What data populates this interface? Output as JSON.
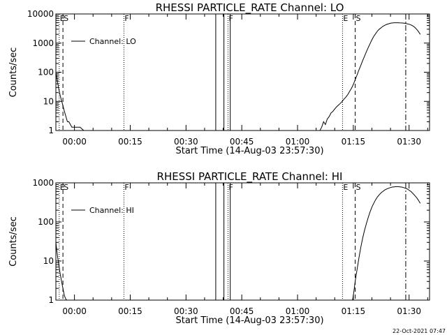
{
  "footer": {
    "date_stamp": "22-Oct-2021 07:47"
  },
  "chart_data": [
    {
      "type": "line",
      "title": "RHESSI PARTICLE_RATE Channel: LO",
      "xlabel": "Start Time (14-Aug-03 23:57:30)",
      "ylabel": "Counts/sec",
      "yscale": "log",
      "ylim": [
        1,
        10000
      ],
      "ytick_labels": [
        "1",
        "10",
        "100",
        "1000",
        "10000"
      ],
      "ytick_values": [
        1,
        10,
        100,
        1000,
        10000
      ],
      "xlim": [
        -2.5,
        98
      ],
      "xtick_labels": [
        "00:00",
        "00:15",
        "00:30",
        "00:45",
        "01:00",
        "01:15",
        "01:30"
      ],
      "xtick_values": [
        2.5,
        17.5,
        32.5,
        47.5,
        62.5,
        77.5,
        92.5
      ],
      "legend": {
        "label": "Channel: LO",
        "position": "top-left"
      },
      "series": [
        {
          "x": [
            -2.5,
            -2.2,
            -1.8,
            -1.3,
            -0.8,
            -0.3,
            0.2,
            0.6,
            1.0,
            1.4,
            1.8,
            2.3,
            3.0,
            4.0,
            5.0,
            68.5,
            69.0,
            69.5,
            70.0,
            70.5,
            71.0,
            71.5,
            72.0,
            72.5,
            73.0,
            73.5,
            74.0,
            74.5,
            75.0,
            75.5,
            76.0,
            76.5,
            77.0,
            77.5,
            78.0,
            78.5,
            79.0,
            79.5,
            80.0,
            80.5,
            81.0,
            81.5,
            82.0,
            82.5,
            83.0,
            83.5,
            84.0,
            84.5,
            85.0,
            85.5,
            86.0,
            86.5,
            87.0,
            87.5,
            88.0,
            88.5,
            89.0,
            89.5,
            90.0,
            90.5,
            91.0,
            91.5,
            92.0,
            92.5,
            93.0,
            93.5,
            94.0,
            94.5,
            95.0,
            95.5
          ],
          "y": [
            100,
            60,
            30,
            15,
            9,
            5,
            3,
            2,
            2,
            1.6,
            1.3,
            1.3,
            1.3,
            1.3,
            1,
            1,
            1.3,
            2,
            1.6,
            2.5,
            3,
            4,
            4.5,
            5.5,
            6.5,
            7.5,
            8.5,
            10,
            12,
            14,
            17,
            22,
            28,
            38,
            55,
            80,
            120,
            170,
            250,
            350,
            500,
            700,
            950,
            1300,
            1700,
            2100,
            2600,
            3000,
            3400,
            3800,
            4100,
            4400,
            4600,
            4800,
            4900,
            5000,
            5000,
            5000,
            4950,
            4900,
            4850,
            4750,
            4600,
            4450,
            4200,
            3900,
            3500,
            3000,
            2500,
            2000
          ]
        }
      ],
      "event_lines": [
        {
          "x": -1.6,
          "style": "dotted",
          "label": "E"
        },
        {
          "x": -0.6,
          "style": "dashed",
          "label": "S"
        },
        {
          "x": 15.8,
          "style": "dotted",
          "label": "F"
        },
        {
          "x": 40.5,
          "style": "solid",
          "label": ""
        },
        {
          "x": 42.7,
          "style": "solid",
          "label": ""
        },
        {
          "x": 43.8,
          "style": "dotted",
          "label": "F"
        },
        {
          "x": 44.4,
          "style": "solid",
          "label": ""
        },
        {
          "x": 74.6,
          "style": "dotted",
          "label": "E"
        },
        {
          "x": 78.0,
          "style": "dashed",
          "label": "S"
        },
        {
          "x": 91.6,
          "style": "dashdot",
          "label": ""
        }
      ]
    },
    {
      "type": "line",
      "title": "RHESSI PARTICLE_RATE Channel: HI",
      "xlabel": "Start Time (14-Aug-03 23:57:30)",
      "ylabel": "Counts/sec",
      "yscale": "log",
      "ylim": [
        1,
        1000
      ],
      "ytick_labels": [
        "1",
        "10",
        "100",
        "1000"
      ],
      "ytick_values": [
        1,
        10,
        100,
        1000
      ],
      "xlim": [
        -2.5,
        98
      ],
      "xtick_labels": [
        "00:00",
        "00:15",
        "00:30",
        "00:45",
        "01:00",
        "01:15",
        "01:30"
      ],
      "xtick_values": [
        2.5,
        17.5,
        32.5,
        47.5,
        62.5,
        77.5,
        92.5
      ],
      "legend": {
        "label": "Channel: HI",
        "position": "top-left"
      },
      "series": [
        {
          "x": [
            -2.5,
            -2.3,
            -2.0,
            -1.7,
            -1.4,
            -1.1,
            -0.8,
            -0.5,
            -0.2,
            0.1,
            0.4,
            77.3,
            77.6,
            78.0,
            78.5,
            79.0,
            79.5,
            80.0,
            80.5,
            81.0,
            81.5,
            82.0,
            82.5,
            83.0,
            83.5,
            84.0,
            84.5,
            85.0,
            85.5,
            86.0,
            86.5,
            87.0,
            87.5,
            88.0,
            88.5,
            89.0,
            89.5,
            90.0,
            90.5,
            91.0,
            91.5,
            92.0,
            92.5,
            93.0,
            93.5,
            94.0,
            94.5,
            95.0,
            95.5
          ],
          "y": [
            30,
            20,
            12,
            8,
            5,
            3.5,
            2.5,
            1.8,
            1.3,
            1.1,
            1,
            1,
            1.5,
            3,
            6,
            12,
            22,
            38,
            60,
            90,
            130,
            180,
            240,
            300,
            370,
            440,
            500,
            560,
            610,
            660,
            700,
            730,
            760,
            780,
            790,
            800,
            800,
            790,
            780,
            760,
            730,
            700,
            650,
            600,
            540,
            480,
            420,
            360,
            300
          ]
        }
      ],
      "event_lines": [
        {
          "x": -1.6,
          "style": "dotted",
          "label": "E"
        },
        {
          "x": -0.6,
          "style": "dashed",
          "label": "S"
        },
        {
          "x": 15.8,
          "style": "dotted",
          "label": "F"
        },
        {
          "x": 40.5,
          "style": "solid",
          "label": ""
        },
        {
          "x": 42.7,
          "style": "solid",
          "label": ""
        },
        {
          "x": 43.8,
          "style": "dotted",
          "label": "F"
        },
        {
          "x": 44.4,
          "style": "solid",
          "label": ""
        },
        {
          "x": 74.6,
          "style": "dotted",
          "label": "E"
        },
        {
          "x": 78.0,
          "style": "dashed",
          "label": "S"
        },
        {
          "x": 91.6,
          "style": "dashdot",
          "label": ""
        }
      ]
    }
  ]
}
